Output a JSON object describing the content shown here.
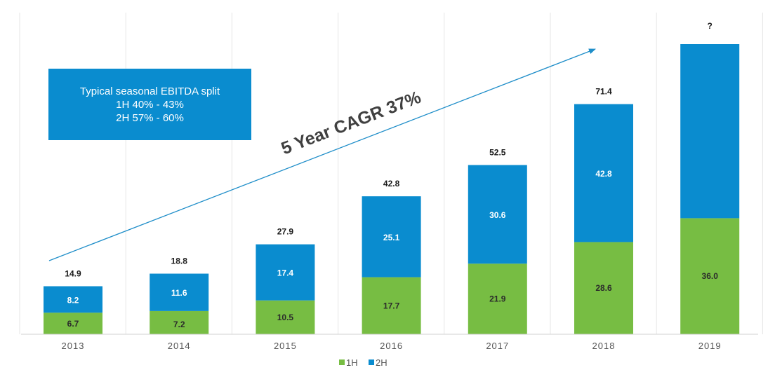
{
  "chart_data": {
    "type": "bar",
    "stacked": true,
    "categories": [
      "2013",
      "2014",
      "2015",
      "2016",
      "2017",
      "2018",
      "2019"
    ],
    "series": [
      {
        "name": "1H",
        "values": [
          6.7,
          7.2,
          10.5,
          17.7,
          21.9,
          28.6,
          36.0
        ],
        "labels": [
          "6.7",
          "7.2",
          "10.5",
          "17.7",
          "21.9",
          "28.6",
          "36.0"
        ],
        "color": "#77bd43"
      },
      {
        "name": "2H",
        "values": [
          8.2,
          11.6,
          17.4,
          25.1,
          30.6,
          42.8,
          54.0
        ],
        "labels": [
          "8.2",
          "11.6",
          "17.4",
          "25.1",
          "30.6",
          "42.8",
          ""
        ],
        "color": "#0a8ccf"
      }
    ],
    "totals": [
      "14.9",
      "18.8",
      "27.9",
      "42.8",
      "52.5",
      "71.4",
      "?"
    ],
    "legend_position": "bottom",
    "grid": "vertical",
    "annotation": "5 Year CAGR 37%",
    "callout": {
      "lines": [
        "Typical seasonal EBITDA split",
        "1H 40% - 43%",
        "2H 57% - 60%"
      ]
    },
    "colors": {
      "grid": "#e6e6e6",
      "axis": "#d0d0d0",
      "arrow": "#1f8ec9",
      "text": "#1a1a1a"
    }
  }
}
